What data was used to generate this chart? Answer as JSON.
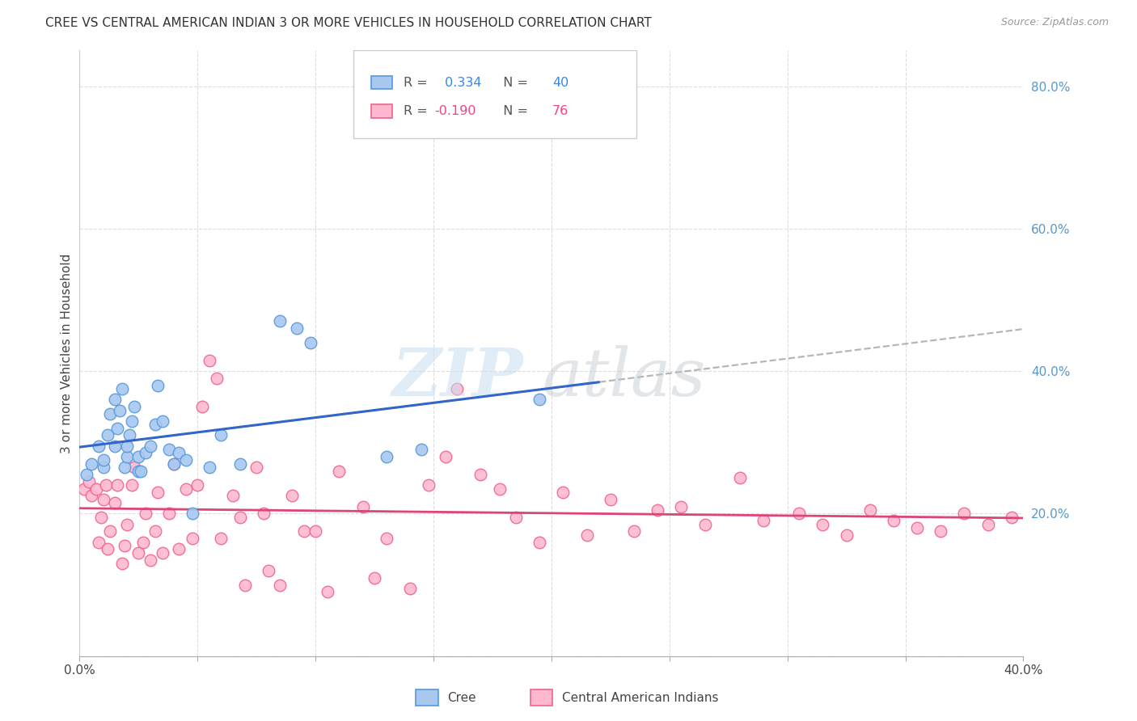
{
  "title": "CREE VS CENTRAL AMERICAN INDIAN 3 OR MORE VEHICLES IN HOUSEHOLD CORRELATION CHART",
  "source": "Source: ZipAtlas.com",
  "ylabel": "3 or more Vehicles in Household",
  "xlim": [
    0.0,
    0.4
  ],
  "ylim": [
    0.0,
    0.85
  ],
  "x_ticks": [
    0.0,
    0.05,
    0.1,
    0.15,
    0.2,
    0.25,
    0.3,
    0.35,
    0.4
  ],
  "y_ticks": [
    0.0,
    0.2,
    0.4,
    0.6,
    0.8
  ],
  "cree_fill_color": "#a8c8f0",
  "cree_edge_color": "#5599dd",
  "cai_fill_color": "#ffb8d0",
  "cai_edge_color": "#ee6688",
  "cree_line_color": "#3366cc",
  "cai_line_color": "#dd4477",
  "dashed_line_color": "#aaaaaa",
  "cree_R": 0.334,
  "cree_N": 40,
  "cai_R": -0.19,
  "cai_N": 76,
  "cree_points_x": [
    0.003,
    0.005,
    0.008,
    0.01,
    0.01,
    0.012,
    0.013,
    0.015,
    0.015,
    0.016,
    0.017,
    0.018,
    0.019,
    0.02,
    0.02,
    0.021,
    0.022,
    0.023,
    0.025,
    0.025,
    0.026,
    0.028,
    0.03,
    0.032,
    0.033,
    0.035,
    0.038,
    0.04,
    0.042,
    0.045,
    0.048,
    0.055,
    0.06,
    0.068,
    0.085,
    0.092,
    0.098,
    0.13,
    0.145,
    0.195
  ],
  "cree_points_y": [
    0.255,
    0.27,
    0.295,
    0.265,
    0.275,
    0.31,
    0.34,
    0.36,
    0.295,
    0.32,
    0.345,
    0.375,
    0.265,
    0.28,
    0.295,
    0.31,
    0.33,
    0.35,
    0.26,
    0.28,
    0.26,
    0.285,
    0.295,
    0.325,
    0.38,
    0.33,
    0.29,
    0.27,
    0.285,
    0.275,
    0.2,
    0.265,
    0.31,
    0.27,
    0.47,
    0.46,
    0.44,
    0.28,
    0.29,
    0.36
  ],
  "cai_points_x": [
    0.002,
    0.004,
    0.005,
    0.007,
    0.008,
    0.009,
    0.01,
    0.011,
    0.012,
    0.013,
    0.015,
    0.016,
    0.018,
    0.019,
    0.02,
    0.022,
    0.023,
    0.025,
    0.027,
    0.028,
    0.03,
    0.032,
    0.033,
    0.035,
    0.038,
    0.04,
    0.042,
    0.045,
    0.048,
    0.05,
    0.052,
    0.055,
    0.058,
    0.06,
    0.065,
    0.068,
    0.07,
    0.075,
    0.078,
    0.08,
    0.085,
    0.09,
    0.095,
    0.1,
    0.105,
    0.11,
    0.12,
    0.125,
    0.13,
    0.14,
    0.148,
    0.155,
    0.16,
    0.17,
    0.178,
    0.185,
    0.195,
    0.205,
    0.215,
    0.225,
    0.235,
    0.245,
    0.255,
    0.265,
    0.28,
    0.29,
    0.305,
    0.315,
    0.325,
    0.335,
    0.345,
    0.355,
    0.365,
    0.375,
    0.385,
    0.395
  ],
  "cai_points_y": [
    0.235,
    0.245,
    0.225,
    0.235,
    0.16,
    0.195,
    0.22,
    0.24,
    0.15,
    0.175,
    0.215,
    0.24,
    0.13,
    0.155,
    0.185,
    0.24,
    0.265,
    0.145,
    0.16,
    0.2,
    0.135,
    0.175,
    0.23,
    0.145,
    0.2,
    0.27,
    0.15,
    0.235,
    0.165,
    0.24,
    0.35,
    0.415,
    0.39,
    0.165,
    0.225,
    0.195,
    0.1,
    0.265,
    0.2,
    0.12,
    0.1,
    0.225,
    0.175,
    0.175,
    0.09,
    0.26,
    0.21,
    0.11,
    0.165,
    0.095,
    0.24,
    0.28,
    0.375,
    0.255,
    0.235,
    0.195,
    0.16,
    0.23,
    0.17,
    0.22,
    0.175,
    0.205,
    0.21,
    0.185,
    0.25,
    0.19,
    0.2,
    0.185,
    0.17,
    0.205,
    0.19,
    0.18,
    0.175,
    0.2,
    0.185,
    0.195
  ]
}
